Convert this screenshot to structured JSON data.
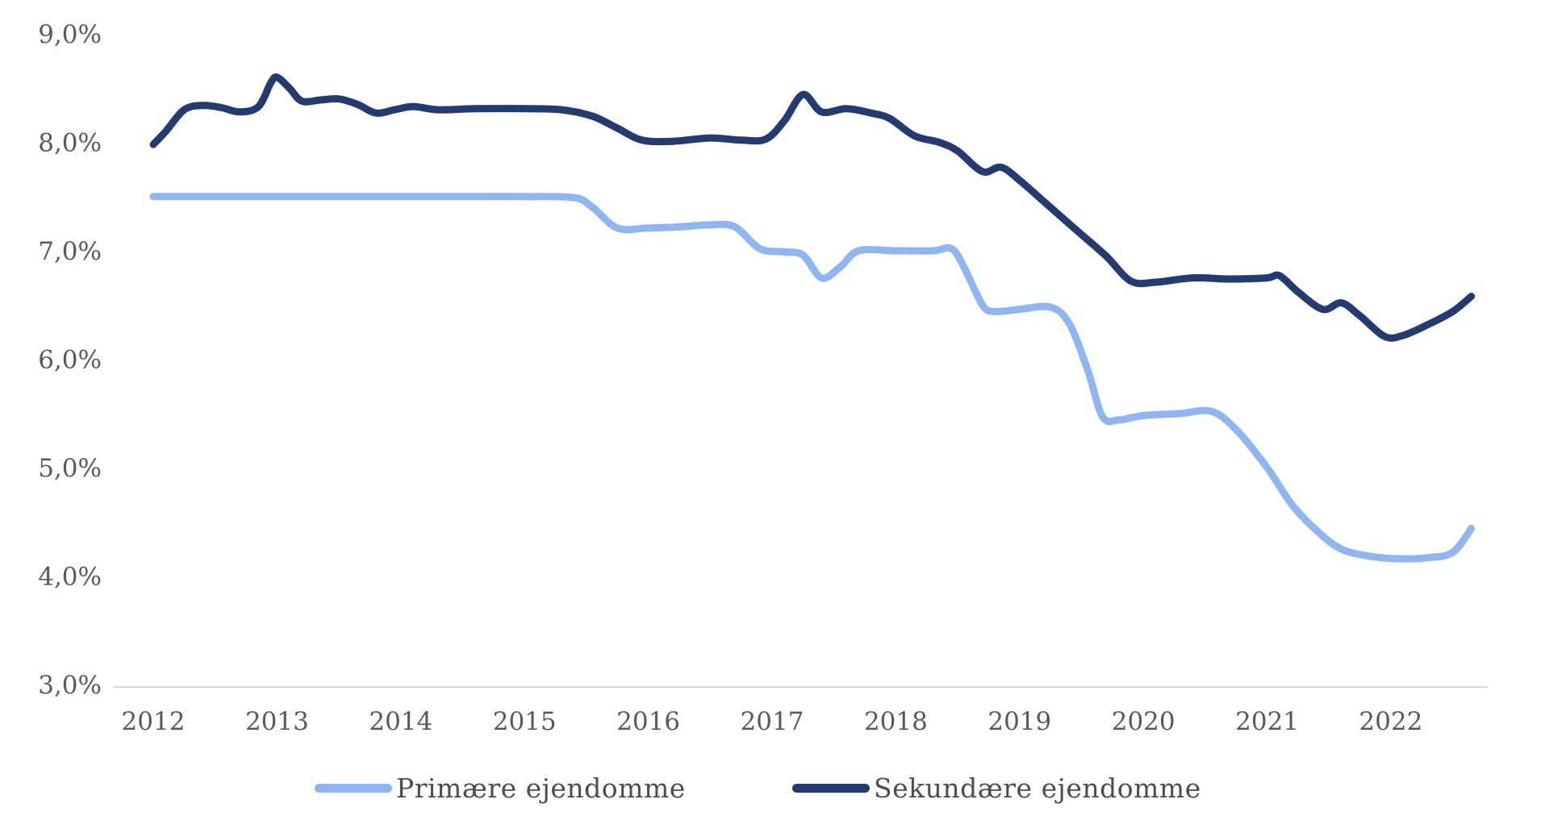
{
  "chart_data": {
    "type": "line",
    "title": "",
    "xlabel": "",
    "ylabel": "",
    "grid": "off",
    "legend_position": "bottom-center",
    "x_axis": {
      "tick_labels": [
        "2012",
        "2013",
        "2014",
        "2015",
        "2016",
        "2017",
        "2018",
        "2019",
        "2020",
        "2021",
        "2022"
      ],
      "tick_years": [
        2012,
        2013,
        2014,
        2015,
        2016,
        2017,
        2018,
        2019,
        2020,
        2021,
        2022
      ],
      "range_years": [
        2012.0,
        2022.77
      ]
    },
    "y_axis": {
      "tick_labels": [
        "9,0%",
        "8,0%",
        "7,0%",
        "6,0%",
        "5,0%",
        "4,0%",
        "3,0%"
      ],
      "tick_values": [
        9.0,
        8.0,
        7.0,
        6.0,
        5.0,
        4.0,
        3.0
      ],
      "min": 3.0,
      "max": 9.0,
      "unit": "%"
    },
    "series": [
      {
        "name": "Primære ejendomme",
        "color": "#8FB6F2",
        "points": [
          [
            2012.0,
            7.5
          ],
          [
            2012.5,
            7.5
          ],
          [
            2013.0,
            7.5
          ],
          [
            2013.5,
            7.5
          ],
          [
            2014.0,
            7.5
          ],
          [
            2014.5,
            7.5
          ],
          [
            2015.0,
            7.5
          ],
          [
            2015.4,
            7.49
          ],
          [
            2015.55,
            7.4
          ],
          [
            2015.75,
            7.21
          ],
          [
            2016.0,
            7.21
          ],
          [
            2016.25,
            7.22
          ],
          [
            2016.5,
            7.24
          ],
          [
            2016.7,
            7.22
          ],
          [
            2016.9,
            7.02
          ],
          [
            2017.1,
            6.99
          ],
          [
            2017.25,
            6.96
          ],
          [
            2017.4,
            6.75
          ],
          [
            2017.55,
            6.85
          ],
          [
            2017.7,
            7.0
          ],
          [
            2018.0,
            7.0
          ],
          [
            2018.3,
            7.0
          ],
          [
            2018.45,
            7.02
          ],
          [
            2018.55,
            6.85
          ],
          [
            2018.7,
            6.5
          ],
          [
            2018.8,
            6.44
          ],
          [
            2019.0,
            6.46
          ],
          [
            2019.25,
            6.48
          ],
          [
            2019.4,
            6.33
          ],
          [
            2019.55,
            5.9
          ],
          [
            2019.67,
            5.47
          ],
          [
            2019.8,
            5.44
          ],
          [
            2020.0,
            5.48
          ],
          [
            2020.3,
            5.5
          ],
          [
            2020.55,
            5.52
          ],
          [
            2020.75,
            5.35
          ],
          [
            2021.0,
            5.0
          ],
          [
            2021.2,
            4.66
          ],
          [
            2021.4,
            4.42
          ],
          [
            2021.6,
            4.25
          ],
          [
            2021.85,
            4.18
          ],
          [
            2022.1,
            4.16
          ],
          [
            2022.3,
            4.17
          ],
          [
            2022.5,
            4.22
          ],
          [
            2022.65,
            4.44
          ]
        ]
      },
      {
        "name": "Sekundære ejendomme",
        "color": "#233A73",
        "points": [
          [
            2012.0,
            7.98
          ],
          [
            2012.1,
            8.1
          ],
          [
            2012.25,
            8.3
          ],
          [
            2012.4,
            8.34
          ],
          [
            2012.55,
            8.32
          ],
          [
            2012.7,
            8.28
          ],
          [
            2012.85,
            8.33
          ],
          [
            2012.95,
            8.55
          ],
          [
            2013.0,
            8.6
          ],
          [
            2013.1,
            8.5
          ],
          [
            2013.2,
            8.38
          ],
          [
            2013.35,
            8.39
          ],
          [
            2013.5,
            8.4
          ],
          [
            2013.65,
            8.35
          ],
          [
            2013.8,
            8.27
          ],
          [
            2013.95,
            8.3
          ],
          [
            2014.1,
            8.33
          ],
          [
            2014.3,
            8.3
          ],
          [
            2014.6,
            8.31
          ],
          [
            2015.0,
            8.31
          ],
          [
            2015.3,
            8.3
          ],
          [
            2015.55,
            8.24
          ],
          [
            2015.75,
            8.13
          ],
          [
            2015.95,
            8.02
          ],
          [
            2016.2,
            8.01
          ],
          [
            2016.5,
            8.04
          ],
          [
            2016.75,
            8.02
          ],
          [
            2016.95,
            8.03
          ],
          [
            2017.1,
            8.2
          ],
          [
            2017.25,
            8.44
          ],
          [
            2017.4,
            8.28
          ],
          [
            2017.6,
            8.31
          ],
          [
            2017.8,
            8.27
          ],
          [
            2017.95,
            8.22
          ],
          [
            2018.15,
            8.06
          ],
          [
            2018.35,
            8.0
          ],
          [
            2018.5,
            7.92
          ],
          [
            2018.7,
            7.73
          ],
          [
            2018.85,
            7.77
          ],
          [
            2019.0,
            7.65
          ],
          [
            2019.2,
            7.45
          ],
          [
            2019.45,
            7.2
          ],
          [
            2019.7,
            6.95
          ],
          [
            2019.9,
            6.72
          ],
          [
            2020.1,
            6.71
          ],
          [
            2020.4,
            6.75
          ],
          [
            2020.7,
            6.74
          ],
          [
            2021.0,
            6.75
          ],
          [
            2021.1,
            6.77
          ],
          [
            2021.25,
            6.62
          ],
          [
            2021.45,
            6.46
          ],
          [
            2021.6,
            6.52
          ],
          [
            2021.75,
            6.4
          ],
          [
            2021.95,
            6.21
          ],
          [
            2022.1,
            6.22
          ],
          [
            2022.3,
            6.32
          ],
          [
            2022.5,
            6.44
          ],
          [
            2022.65,
            6.58
          ]
        ]
      }
    ]
  },
  "styles": {
    "background": "#FFFFFF",
    "axis_line_color": "#D9D9D9",
    "tick_text_color": "#595959",
    "legend_text_color": "#4D4D4D"
  }
}
